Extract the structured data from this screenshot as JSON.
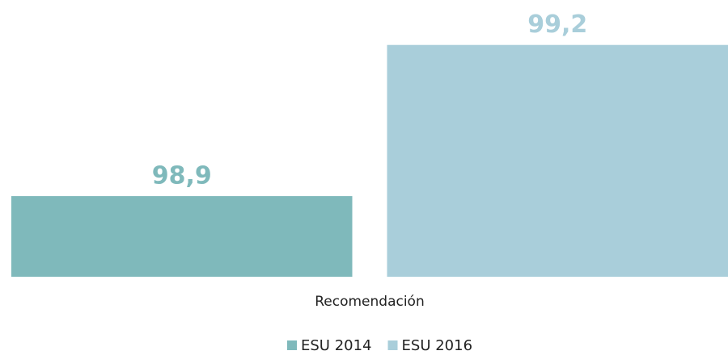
{
  "chart_data": {
    "type": "bar",
    "categories": [
      "Recomendación"
    ],
    "series": [
      {
        "name": "ESU 2014",
        "color": "#7fb9bb",
        "values": [
          98.9
        ],
        "value_labels": [
          "98,9"
        ]
      },
      {
        "name": "ESU 2016",
        "color": "#a9ceda",
        "values": [
          99.2
        ],
        "value_labels": [
          "99,2"
        ]
      }
    ],
    "ylim": [
      98.74,
      99.27
    ],
    "legend": "bottom"
  }
}
